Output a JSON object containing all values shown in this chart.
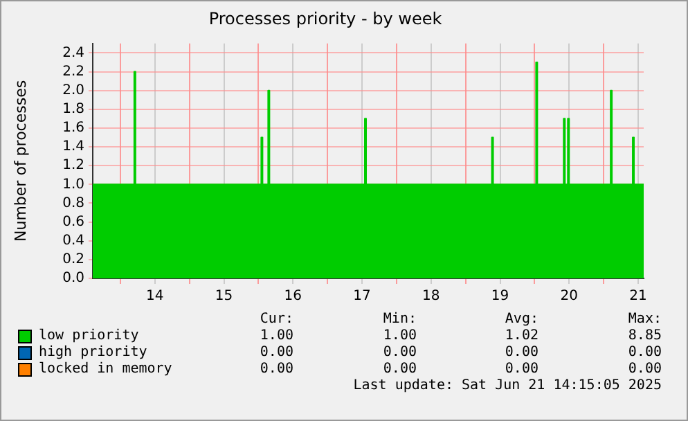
{
  "chart_data": {
    "type": "area",
    "title": "Processes priority - by week",
    "ylabel": "Number of processes",
    "xlim": [
      13.1,
      21.08
    ],
    "xticks": [
      {
        "value": 13.5,
        "label": null
      },
      14,
      {
        "value": 14.5,
        "label": null
      },
      15,
      {
        "value": 15.5,
        "label": null
      },
      16,
      {
        "value": 16.5,
        "label": null
      },
      17,
      {
        "value": 17.5,
        "label": null
      },
      18,
      {
        "value": 18.5,
        "label": null
      },
      19,
      {
        "value": 19.5,
        "label": null
      },
      20,
      {
        "value": 20.5,
        "label": null
      },
      21
    ],
    "ylim": [
      0,
      2.5
    ],
    "yticks": [
      {
        "value": 0,
        "label": "0.0"
      },
      {
        "value": 0.2,
        "label": "0.2"
      },
      {
        "value": 0.4,
        "label": "0.4"
      },
      {
        "value": 0.6,
        "label": "0.6"
      },
      {
        "value": 0.8,
        "label": "0.8"
      },
      {
        "value": 1,
        "label": "1.0"
      },
      {
        "value": 1.2,
        "label": "1.2"
      },
      {
        "value": 1.4,
        "label": "1.4"
      },
      {
        "value": 1.6,
        "label": "1.6"
      },
      {
        "value": 1.8,
        "label": "1.8"
      },
      {
        "value": 2,
        "label": "2.0"
      },
      {
        "value": 2.2,
        "label": "2.2"
      },
      {
        "value": 2.4,
        "label": "2.4"
      }
    ],
    "grid": true,
    "legend": "bottom",
    "series": [
      {
        "name": "low priority",
        "color": "#00cc00",
        "x": [
          13.1,
          13.7,
          13.7,
          13.72,
          13.72,
          15.54,
          15.54,
          15.56,
          15.56,
          15.64,
          15.64,
          15.66,
          15.66,
          17.04,
          17.04,
          17.06,
          17.06,
          18.88,
          18.88,
          18.9,
          18.9,
          19.52,
          19.52,
          19.54,
          19.54,
          19.92,
          19.92,
          19.94,
          19.94,
          19.98,
          19.98,
          20.0,
          20.0,
          20.6,
          20.6,
          20.62,
          20.62,
          20.92,
          20.92,
          20.94,
          20.94,
          21.08
        ],
        "values": [
          1,
          1,
          2.2,
          2.2,
          1,
          1,
          1.5,
          1.5,
          1,
          1,
          2,
          2,
          1,
          1,
          1.7,
          1.7,
          1,
          1,
          1.5,
          1.5,
          1,
          1,
          2.3,
          2.3,
          1,
          1,
          1.7,
          1.7,
          1,
          1,
          1.7,
          1.7,
          1,
          1,
          2,
          2,
          1,
          1,
          1.5,
          1.5,
          1,
          1
        ]
      },
      {
        "name": "high priority",
        "color": "#0066b3"
      },
      {
        "name": "locked in memory",
        "color": "#ff8000"
      }
    ],
    "annotations": [
      "Cur:",
      "Min:",
      "Avg:",
      "Max:",
      "1.00",
      "1.00",
      "1.02",
      "8.85",
      "0.00",
      "0.00",
      "0.00",
      "0.00",
      "0.00",
      "0.00",
      "0.00",
      "0.00",
      "Last update: Sat Jun 21 14:15:05 2025"
    ]
  }
}
